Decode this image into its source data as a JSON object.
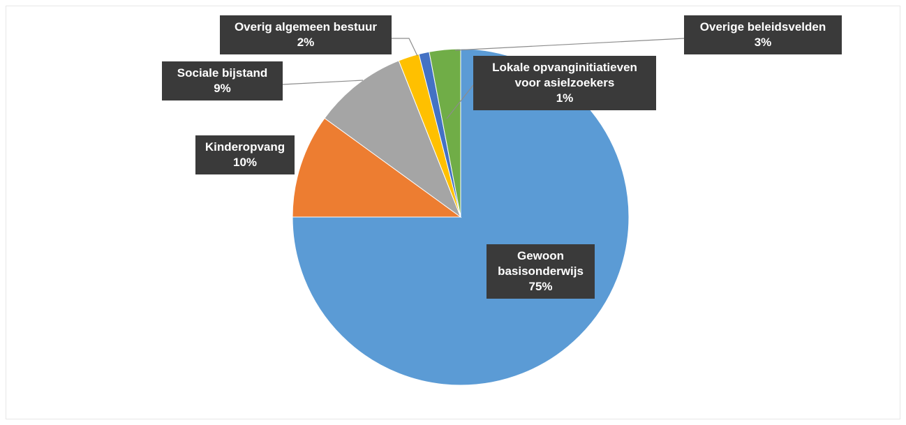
{
  "chart_data": {
    "type": "pie",
    "categories": [
      "Gewoon basisonderwijs",
      "Kinderopvang",
      "Sociale bijstand",
      "Overig algemeen bestuur",
      "Lokale opvanginitiatieven voor asielzoekers",
      "Overige beleidsvelden"
    ],
    "values": [
      75,
      10,
      9,
      2,
      1,
      3
    ],
    "value_labels": [
      "75%",
      "10%",
      "9%",
      "2%",
      "1%",
      "3%"
    ],
    "colors": [
      "#5b9bd5",
      "#ed7d31",
      "#a5a5a5",
      "#ffc000",
      "#4472c4",
      "#70ad47"
    ]
  }
}
